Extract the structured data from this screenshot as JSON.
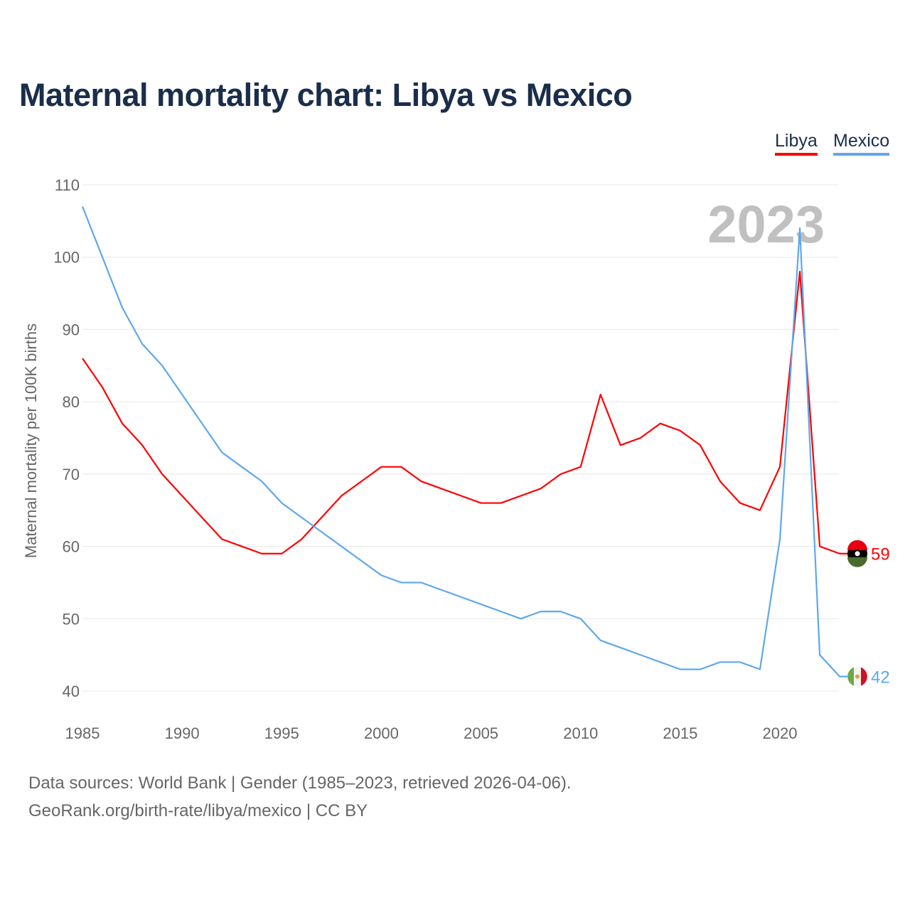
{
  "title": "Maternal mortality chart: Libya vs Mexico",
  "source_line1": "Data sources: World Bank | Gender (1985–2023, retrieved 2026-04-06).",
  "source_line2": "GeoRank.org/birth-rate/libya/mexico | CC BY",
  "chart_data": {
    "type": "line",
    "title": "Maternal mortality chart: Libya vs Mexico",
    "ylabel": "Maternal mortality per 100K births",
    "xlabel": "",
    "ylim": [
      40,
      110
    ],
    "xlim": [
      1985,
      2023
    ],
    "yticks": [
      "40",
      "50",
      "60",
      "70",
      "80",
      "90",
      "100",
      "110"
    ],
    "xticks": [
      "1985",
      "1990",
      "1995",
      "2000",
      "2005",
      "2010",
      "2015",
      "2020"
    ],
    "year_label": "2023",
    "legend": "top-right",
    "x": [
      1985,
      1986,
      1987,
      1988,
      1989,
      1990,
      1991,
      1992,
      1993,
      1994,
      1995,
      1996,
      1997,
      1998,
      1999,
      2000,
      2001,
      2002,
      2003,
      2004,
      2005,
      2006,
      2007,
      2008,
      2009,
      2010,
      2011,
      2012,
      2013,
      2014,
      2015,
      2016,
      2017,
      2018,
      2019,
      2020,
      2021,
      2022,
      2023
    ],
    "series": [
      {
        "name": "Libya",
        "color": "#ff0000",
        "end_label": "59",
        "values": [
          86,
          82,
          77,
          74,
          70,
          67,
          64,
          61,
          60,
          59,
          59,
          61,
          64,
          67,
          69,
          71,
          71,
          69,
          68,
          67,
          66,
          66,
          67,
          68,
          70,
          71,
          81,
          74,
          75,
          77,
          76,
          74,
          69,
          66,
          65,
          71,
          98,
          60,
          59
        ]
      },
      {
        "name": "Mexico",
        "color": "#5ea8ec",
        "end_label": "42",
        "values": [
          107,
          100,
          93,
          88,
          85,
          81,
          77,
          73,
          71,
          69,
          66,
          64,
          62,
          60,
          58,
          56,
          55,
          55,
          54,
          53,
          52,
          51,
          50,
          51,
          51,
          50,
          47,
          46,
          45,
          44,
          43,
          43,
          44,
          44,
          43,
          61,
          104,
          45,
          42
        ]
      }
    ]
  }
}
